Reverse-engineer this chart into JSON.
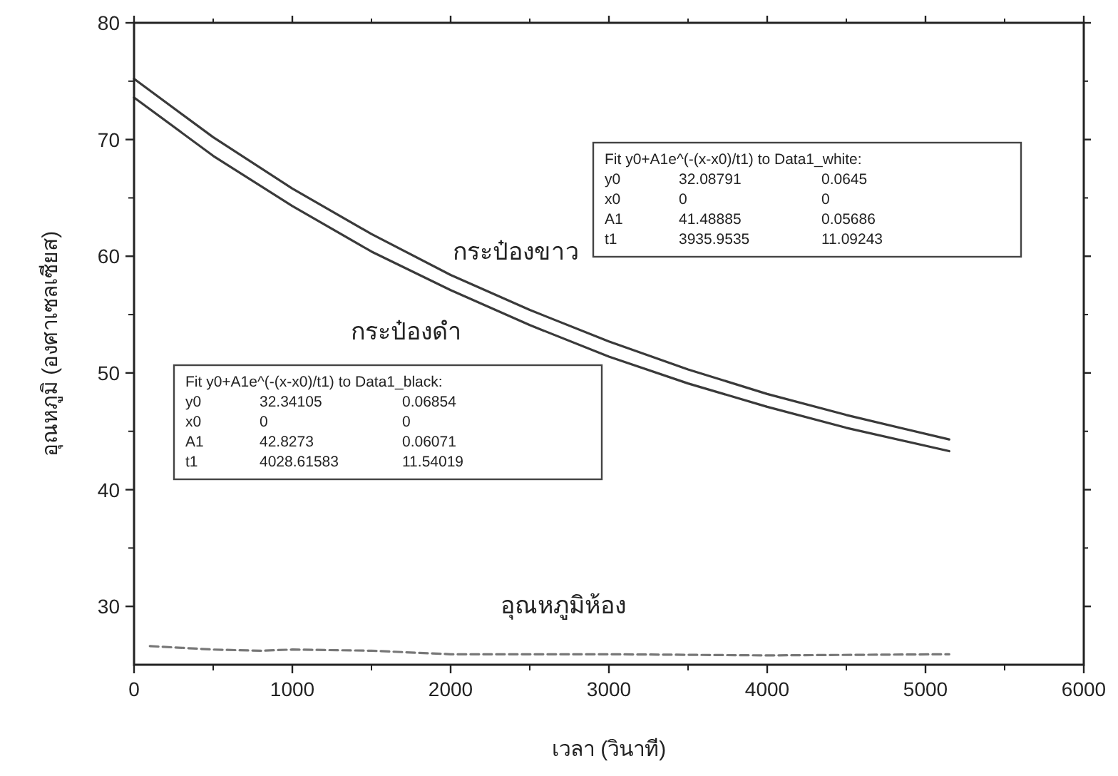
{
  "chart_data": {
    "type": "line",
    "xlabel": "เวลา (วินาที)",
    "ylabel": "อุณหภูมิ (องศาเซลเซียส)",
    "xlim": [
      0,
      6000
    ],
    "ylim": [
      25,
      80
    ],
    "xticks": [
      0,
      1000,
      2000,
      3000,
      4000,
      5000,
      6000
    ],
    "yticks": [
      30,
      40,
      50,
      60,
      70,
      80
    ],
    "grid": false,
    "marker": "none",
    "series": [
      {
        "color": "#3a3a3a",
        "line_style": "solid",
        "x": [
          0,
          500,
          1000,
          1500,
          2000,
          2500,
          3000,
          3500,
          4000,
          4500,
          5150
        ],
        "values": [
          75.2,
          70.2,
          65.8,
          61.9,
          58.4,
          55.4,
          52.7,
          50.3,
          48.2,
          46.4,
          44.3
        ]
      },
      {
        "color": "#3a3a3a",
        "line_style": "solid",
        "x": [
          0,
          500,
          1000,
          1500,
          2000,
          2500,
          3000,
          3500,
          4000,
          4500,
          5150
        ],
        "values": [
          73.6,
          68.6,
          64.3,
          60.4,
          57.1,
          54.1,
          51.4,
          49.1,
          47.1,
          45.3,
          43.3
        ]
      },
      {
        "color": "#777777",
        "line_style": "dashed",
        "x": [
          100,
          500,
          800,
          1000,
          1500,
          2000,
          3000,
          4000,
          5150
        ],
        "values": [
          26.6,
          26.3,
          26.2,
          26.3,
          26.2,
          25.9,
          25.9,
          25.8,
          25.9
        ]
      }
    ],
    "annotations": [
      "กระป๋องขาว",
      "กระป๋องดำ",
      "อุณหภูมิห้อง",
      "Fit y0+A1e^(-(x-x0)/t1) to Data1_white:\ny0\t32.08791\t0.0645\nx0\t0\t0\nA1\t41.48885\t0.05686\nt1\t3935.9535\t11.09243",
      "Fit y0+A1e^(-(x-x0)/t1) to Data1_black:\ny0\t32.34105\t0.06854\nx0\t0\t0\nA1\t42.8273\t0.06071\nt1\t4028.61583\t11.54019"
    ]
  }
}
